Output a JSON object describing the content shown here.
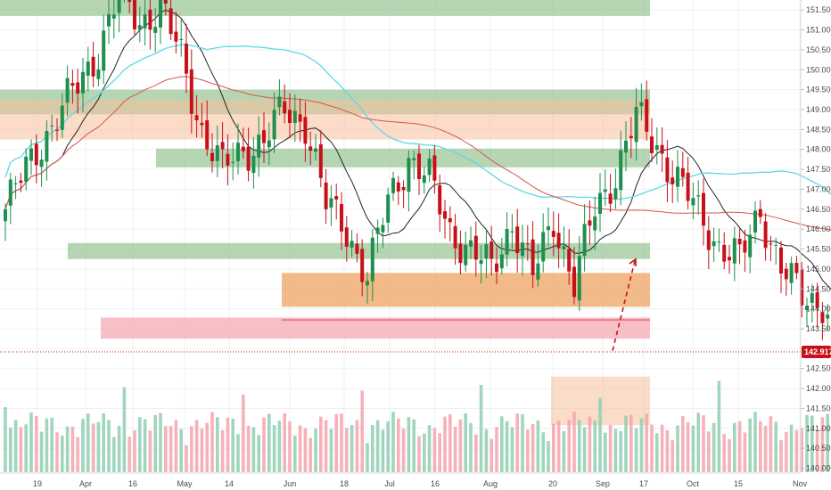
{
  "chart_data": {
    "type": "candlestick",
    "symbol": "",
    "y_axis": {
      "min": 139.9,
      "max": 151.75,
      "ticks": [
        "151.500",
        "151.000",
        "150.500",
        "150.000",
        "149.500",
        "149.000",
        "148.500",
        "148.000",
        "147.500",
        "147.000",
        "146.500",
        "146.000",
        "145.500",
        "145.000",
        "144.500",
        "144.000",
        "143.500",
        "143.000",
        "142.500",
        "142.000",
        "141.500",
        "141.000",
        "140.500",
        "140.000"
      ],
      "position": "right"
    },
    "x_axis": {
      "labels": [
        "19",
        "Apr",
        "16",
        "May",
        "14",
        "Jun",
        "18",
        "Jul",
        "16",
        "Aug",
        "20",
        "Sep",
        "17",
        "Oct",
        "15",
        "Nov"
      ]
    },
    "current_price": "142.917",
    "colors": {
      "up": "#1e8f4e",
      "down": "#c8101a",
      "vol_up": "#8fcfb2",
      "vol_down": "#f4a3ad",
      "ma_cyan": "#5ed8e8",
      "ma_black": "#222222",
      "ma_red": "#d9534f",
      "zone_green": "#8fbf8a",
      "zone_orange": "#f5c09a",
      "zone_orange_dark": "#ec9c55",
      "zone_pink": "#f7a9b3",
      "price_line": "#c8101a"
    },
    "zones": [
      {
        "kind": "green",
        "from": "19",
        "to": "end",
        "top": 151.75,
        "bottom": 151.35
      },
      {
        "kind": "green",
        "from": "19",
        "to": "end",
        "top": 149.5,
        "bottom": 148.88
      },
      {
        "kind": "orange",
        "from": "19",
        "to": "end",
        "top": 149.25,
        "bottom": 148.25
      },
      {
        "kind": "green",
        "from": "May",
        "to": "end",
        "top": 148.02,
        "bottom": 147.55
      },
      {
        "kind": "green",
        "from": "Apr",
        "to": "end",
        "top": 145.65,
        "bottom": 145.25
      },
      {
        "kind": "orange_dark",
        "from": "Jun",
        "to": "end",
        "top": 144.9,
        "bottom": 144.05
      },
      {
        "kind": "pink",
        "from": "Jun",
        "to": "end",
        "top": 143.78,
        "bottom": 143.25
      },
      {
        "kind": "orange",
        "from": "Aug",
        "to": "end",
        "top": 142.3,
        "bottom": 141.08
      }
    ],
    "forecast_arrow": {
      "from": 142.95,
      "to": 145.2
    }
  }
}
